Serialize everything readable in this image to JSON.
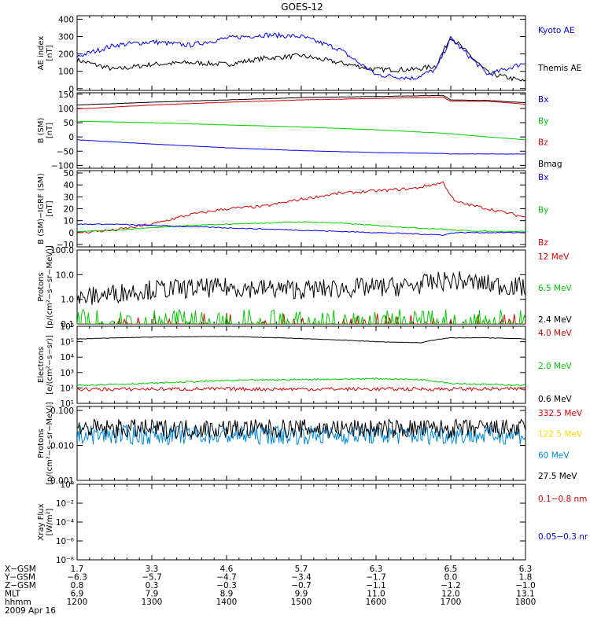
{
  "title": "GOES-12",
  "panels": [
    {
      "id": "ae",
      "ylabel": [
        "AE index",
        "[nT]"
      ],
      "yticks": [
        {
          "v": 400,
          "label": "400"
        },
        {
          "v": 300,
          "label": "300"
        },
        {
          "v": 200,
          "label": "200"
        },
        {
          "v": 100,
          "label": "100"
        },
        {
          "v": 0,
          "label": "0"
        }
      ],
      "legend": [
        {
          "label": "Kyoto AE",
          "color": "#0000ff"
        },
        {
          "label": "Themis AE",
          "color": "#000000"
        }
      ]
    },
    {
      "id": "bsm",
      "ylabel": [
        "B (SM)",
        "[nT]"
      ],
      "yticks": [
        {
          "v": 150,
          "label": "150"
        },
        {
          "v": 100,
          "label": "100"
        },
        {
          "v": 50,
          "label": "50"
        },
        {
          "v": 0,
          "label": "0"
        },
        {
          "v": -50,
          "label": "−50"
        },
        {
          "v": -100,
          "label": "−100"
        }
      ],
      "legend": [
        {
          "label": "Bx",
          "color": "#0000ff"
        },
        {
          "label": "By",
          "color": "#00cc00"
        },
        {
          "label": "Bz",
          "color": "#dd0000"
        },
        {
          "label": "Bmag",
          "color": "#000000"
        }
      ]
    },
    {
      "id": "bigrf",
      "ylabel": [
        "B (SM)−IGRF (SM)",
        "[nT]"
      ],
      "yticks": [
        {
          "v": 50,
          "label": "50"
        },
        {
          "v": 40,
          "label": "40"
        },
        {
          "v": 30,
          "label": "30"
        },
        {
          "v": 20,
          "label": "20"
        },
        {
          "v": 10,
          "label": "10"
        },
        {
          "v": 0,
          "label": "0"
        },
        {
          "v": -10,
          "label": "−10"
        }
      ],
      "legend": [
        {
          "label": "Bx",
          "color": "#0000ff"
        },
        {
          "label": "By",
          "color": "#00cc00"
        },
        {
          "label": "Bz",
          "color": "#dd0000"
        }
      ]
    },
    {
      "id": "protons1",
      "ylabel": [
        "Protons",
        "[p/(cm²−s−sr−MeV)]"
      ],
      "yticks": [
        {
          "v": 100,
          "label": "100.0"
        },
        {
          "v": 10,
          "label": "10.0"
        },
        {
          "v": 1,
          "label": "1.0"
        },
        {
          "v": 0.1,
          "label": "0.1"
        }
      ],
      "legend": [
        {
          "label": "12 MeV",
          "color": "#dd0000"
        },
        {
          "label": "6.5 MeV",
          "color": "#00cc00"
        },
        {
          "label": "2.4 MeV",
          "color": "#000000"
        }
      ]
    },
    {
      "id": "electrons",
      "ylabel": [
        "Electrons",
        "[e/(cm²−s−sr)]"
      ],
      "yticks": [
        {
          "v": 1000000,
          "label": "10⁶"
        },
        {
          "v": 100000,
          "label": "10⁵"
        },
        {
          "v": 10000,
          "label": "10⁴"
        },
        {
          "v": 1000,
          "label": "10³"
        },
        {
          "v": 100,
          "label": "10²"
        },
        {
          "v": 10,
          "label": "10¹"
        }
      ],
      "legend": [
        {
          "label": "4.0 MeV",
          "color": "#dd0000"
        },
        {
          "label": "2.0 MeV",
          "color": "#00cc00"
        },
        {
          "label": "0.6 MeV",
          "color": "#000000"
        }
      ]
    },
    {
      "id": "protons2",
      "ylabel": [
        "Protons",
        "[p/(cm²−s−sr−MeV)]"
      ],
      "yticks": [
        {
          "v": 0.1,
          "label": "0.100"
        },
        {
          "v": 0.01,
          "label": "0.010"
        },
        {
          "v": 0.001,
          "label": "0.001"
        }
      ],
      "legend": [
        {
          "label": "332.5 MeV",
          "color": "#dd0000"
        },
        {
          "label": "122.5 MeV",
          "color": "#ffd700"
        },
        {
          "label": "60 MeV",
          "color": "#0088dd"
        },
        {
          "label": "27.5 MeV",
          "color": "#000000"
        }
      ]
    },
    {
      "id": "xray",
      "ylabel": [
        "Xray Flux",
        "[W/m²]"
      ],
      "yticks": [
        {
          "v": 1,
          "label": "10⁰"
        },
        {
          "v": 0.01,
          "label": "10⁻²"
        },
        {
          "v": 0.0001,
          "label": "10⁻⁴"
        },
        {
          "v": 1e-06,
          "label": "10⁻⁶"
        },
        {
          "v": 1e-08,
          "label": "10⁻⁸"
        }
      ],
      "legend": [
        {
          "label": "0.1−0.8 nm",
          "color": "#dd0000"
        },
        {
          "label": "0.05−0.3 nr",
          "color": "#0000ff"
        }
      ]
    }
  ],
  "footer": {
    "rows": [
      {
        "label": "X−GSM",
        "values": [
          "1.7",
          "3.3",
          "4.6",
          "5.7",
          "6.3",
          "6.5",
          "6.3"
        ]
      },
      {
        "label": "Y−GSM",
        "values": [
          "−6.3",
          "−5.7",
          "−4.7",
          "−3.4",
          "−1.7",
          "0.0",
          "1.8"
        ]
      },
      {
        "label": "Z−GSM",
        "values": [
          "0.8",
          "0.3",
          "−0.3",
          "−0.7",
          "−1.1",
          "−1.2",
          "−1.0"
        ]
      },
      {
        "label": "MLT",
        "values": [
          "6.9",
          "7.9",
          "8.9",
          "9.9",
          "11.0",
          "12.0",
          "13.1"
        ]
      },
      {
        "label": "hhmm",
        "values": [
          "1200",
          "1300",
          "1400",
          "1500",
          "1600",
          "1700",
          "1800"
        ]
      }
    ],
    "date": "2009 Apr 16"
  },
  "chart_data": [
    {
      "type": "line",
      "ylabel": "AE index [nT]",
      "ylim": [
        0,
        420
      ],
      "x": [
        12.0,
        12.5,
        13.0,
        13.5,
        14.0,
        14.5,
        15.0,
        15.5,
        16.0,
        16.5,
        16.8,
        17.0,
        17.5,
        18.0
      ],
      "series": [
        {
          "name": "Kyoto AE",
          "color": "#0000ff",
          "values": [
            185,
            250,
            270,
            250,
            290,
            310,
            300,
            230,
            80,
            60,
            110,
            290,
            80,
            150
          ]
        },
        {
          "name": "Themis AE",
          "color": "#000000",
          "values": [
            165,
            110,
            140,
            150,
            140,
            175,
            190,
            150,
            110,
            110,
            130,
            300,
            90,
            40
          ]
        }
      ]
    },
    {
      "type": "line",
      "ylabel": "B (SM) [nT]",
      "ylim": [
        -110,
        155
      ],
      "x": [
        12,
        13,
        14,
        15,
        16,
        16.9,
        17.0,
        17.5,
        18
      ],
      "series": [
        {
          "name": "Bx",
          "color": "#0000ff",
          "values": [
            -10,
            -25,
            -38,
            -48,
            -55,
            -58,
            -60,
            -60,
            -60
          ]
        },
        {
          "name": "By",
          "color": "#00cc00",
          "values": [
            55,
            50,
            42,
            35,
            25,
            13,
            11,
            0,
            -10
          ]
        },
        {
          "name": "Bz",
          "color": "#dd0000",
          "values": [
            98,
            112,
            122,
            130,
            135,
            140,
            125,
            125,
            115
          ]
        },
        {
          "name": "Bmag",
          "color": "#000000",
          "values": [
            112,
            122,
            130,
            138,
            142,
            146,
            130,
            128,
            120
          ]
        }
      ]
    },
    {
      "type": "line",
      "ylabel": "B (SM)−IGRF (SM) [nT]",
      "ylim": [
        -12,
        52
      ],
      "x": [
        12,
        12.5,
        13,
        13.5,
        14,
        14.5,
        15,
        15.5,
        16,
        16.5,
        16.9,
        17.05,
        17.5,
        18
      ],
      "series": [
        {
          "name": "Bx",
          "color": "#0000ff",
          "values": [
            7,
            7,
            6,
            5,
            4,
            3,
            2,
            1,
            0,
            -1,
            -2,
            0,
            0,
            0
          ]
        },
        {
          "name": "By",
          "color": "#00cc00",
          "values": [
            1,
            2,
            4,
            6,
            7,
            8,
            9,
            8,
            6,
            4,
            3,
            2,
            1,
            1
          ]
        },
        {
          "name": "Bz",
          "color": "#dd0000",
          "values": [
            0,
            2,
            7,
            15,
            20,
            22,
            28,
            33,
            35,
            37,
            42,
            26,
            20,
            13
          ]
        }
      ]
    },
    {
      "type": "line",
      "ylabel": "Protons [p/(cm²−s−sr−MeV)]",
      "scale": "log",
      "ylim": [
        0.1,
        100
      ],
      "x": [
        12,
        13,
        14,
        15,
        16,
        16.5,
        17,
        17.5,
        18
      ],
      "series": [
        {
          "name": "2.4 MeV",
          "color": "#000000",
          "values": [
            1.0,
            2.5,
            3.0,
            2.5,
            3.0,
            3.5,
            6.0,
            4.0,
            3.0
          ]
        },
        {
          "name": "6.5 MeV",
          "color": "#00cc00",
          "values": [
            0.15,
            0.15,
            0.15,
            0.15,
            0.15,
            0.15,
            0.15,
            0.15,
            0.15
          ]
        },
        {
          "name": "12 MeV",
          "color": "#dd0000",
          "values": [
            0.1,
            0.1,
            0.1,
            0.1,
            0.1,
            0.1,
            0.1,
            0.1,
            0.1
          ]
        }
      ]
    },
    {
      "type": "line",
      "ylabel": "Electrons [e/(cm²−s−sr)]",
      "scale": "log",
      "ylim": [
        10,
        1000000
      ],
      "x": [
        12,
        13,
        14,
        15,
        16,
        16.6,
        17,
        17.5,
        18
      ],
      "series": [
        {
          "name": "0.6 MeV",
          "color": "#000000",
          "values": [
            150000,
            200000,
            220000,
            160000,
            100000,
            85000,
            180000,
            180000,
            150000
          ]
        },
        {
          "name": "2.0 MeV",
          "color": "#00cc00",
          "values": [
            150,
            200,
            300,
            350,
            400,
            350,
            200,
            170,
            150
          ]
        },
        {
          "name": "4.0 MeV",
          "color": "#dd0000",
          "values": [
            80,
            85,
            85,
            85,
            85,
            85,
            85,
            85,
            85
          ]
        }
      ]
    },
    {
      "type": "line",
      "ylabel": "Protons [p/(cm²−s−sr−MeV)]",
      "scale": "log",
      "ylim": [
        0.001,
        0.1
      ],
      "x": [
        12,
        13,
        14,
        15,
        16,
        17,
        18
      ],
      "series": [
        {
          "name": "27.5 MeV",
          "color": "#000000",
          "values": [
            0.03,
            0.03,
            0.03,
            0.03,
            0.03,
            0.03,
            0.03
          ]
        },
        {
          "name": "60 MeV",
          "color": "#0088dd",
          "values": [
            0.02,
            0.02,
            0.02,
            0.02,
            0.02,
            0.02,
            0.02
          ]
        }
      ]
    },
    {
      "type": "line",
      "ylabel": "Xray Flux [W/m²]",
      "scale": "log",
      "ylim": [
        1e-08,
        1
      ],
      "series": [
        {
          "name": "0.1−0.8 nm",
          "color": "#dd0000",
          "values": []
        },
        {
          "name": "0.05−0.3 nr",
          "color": "#0000ff",
          "values": []
        }
      ]
    }
  ]
}
